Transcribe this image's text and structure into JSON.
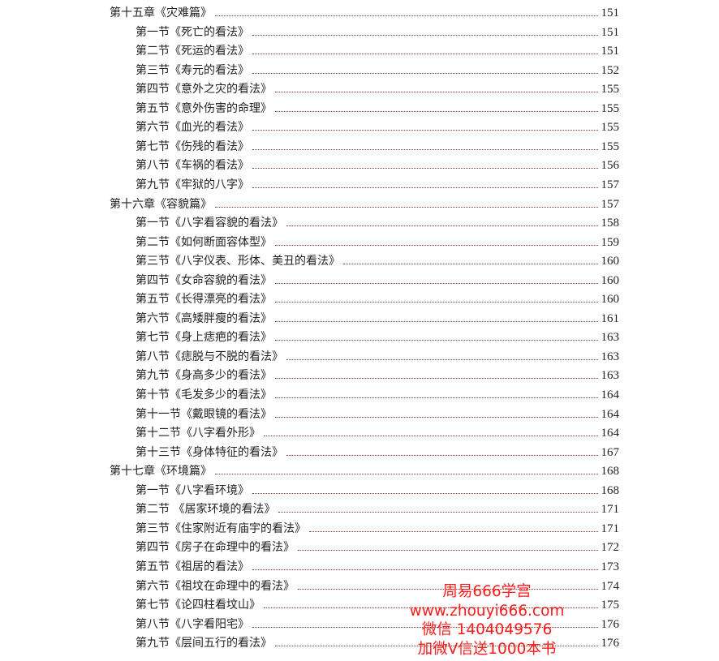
{
  "toc": [
    {
      "level": "chapter",
      "title": "第十五章《灾难篇》",
      "page": "151"
    },
    {
      "level": "section",
      "title": "第一节《死亡的看法》",
      "page": "151"
    },
    {
      "level": "section",
      "title": "第二节《死运的看法》",
      "page": "151"
    },
    {
      "level": "section",
      "title": "第三节《寿元的看法》",
      "page": "152"
    },
    {
      "level": "section",
      "title": "第四节《意外之灾的看法》",
      "page": "155"
    },
    {
      "level": "section",
      "title": "第五节《意外伤害的命理》",
      "page": "155"
    },
    {
      "level": "section",
      "title": "第六节《血光的看法》",
      "page": "155"
    },
    {
      "level": "section",
      "title": "第七节《伤残的看法》",
      "page": "155"
    },
    {
      "level": "section",
      "title": "第八节《车祸的看法》",
      "page": "156"
    },
    {
      "level": "section",
      "title": "第九节《牢狱的八字》",
      "page": "157"
    },
    {
      "level": "chapter",
      "title": "第十六章《容貌篇》",
      "page": "157"
    },
    {
      "level": "section",
      "title": "第一节《八字看容貌的看法》",
      "page": "158"
    },
    {
      "level": "section",
      "title": "第二节《如何断面容体型》",
      "page": "159"
    },
    {
      "level": "section",
      "title": "第三节《八字仪表、形体、美丑的看法》",
      "page": "160"
    },
    {
      "level": "section",
      "title": "第四节《女命容貌的看法》",
      "page": "160"
    },
    {
      "level": "section",
      "title": "第五节《长得漂亮的看法》",
      "page": "160"
    },
    {
      "level": "section",
      "title": "第六节《高矮胖瘦的看法》",
      "page": "161"
    },
    {
      "level": "section",
      "title": "第七节《身上痣疤的看法》",
      "page": "163"
    },
    {
      "level": "section",
      "title": "第八节《痣脱与不脱的看法》",
      "page": "163"
    },
    {
      "level": "section",
      "title": "第九节《身高多少的看法》",
      "page": "163"
    },
    {
      "level": "section",
      "title": "第十节《毛发多少的看法》",
      "page": "164"
    },
    {
      "level": "section",
      "title": "第十一节《戴眼镜的看法》",
      "page": "164"
    },
    {
      "level": "section",
      "title": "第十二节《八字看外形》",
      "page": "164"
    },
    {
      "level": "section",
      "title": "第十三节《身体特征的看法》",
      "page": "167"
    },
    {
      "level": "chapter",
      "title": "第十七章《环境篇》",
      "page": "168"
    },
    {
      "level": "section",
      "title": "第一节《八字看环境》",
      "page": "168"
    },
    {
      "level": "section",
      "title": "第二节 《居家环境的看法》",
      "page": "171"
    },
    {
      "level": "section",
      "title": "第三节《住家附近有庙宇的看法》",
      "page": "171"
    },
    {
      "level": "section",
      "title": "第四节《房子在命理中的看法》",
      "page": "172"
    },
    {
      "level": "section",
      "title": "第五节《祖居的看法》",
      "page": "173"
    },
    {
      "level": "section",
      "title": "第六节《祖坟在命理中的看法》",
      "page": "174"
    },
    {
      "level": "section",
      "title": "第七节《论四柱看坟山》",
      "page": "175"
    },
    {
      "level": "section",
      "title": "第八节《八字看阳宅》",
      "page": "176"
    },
    {
      "level": "section",
      "title": "第九节《层间五行的看法》",
      "page": "176"
    }
  ],
  "watermark": {
    "lines": [
      "周易666学宫",
      "www.zhouyi666.com",
      "微信 1404049576",
      "加微V信送1000本书"
    ],
    "color": "#ff1a1a"
  }
}
